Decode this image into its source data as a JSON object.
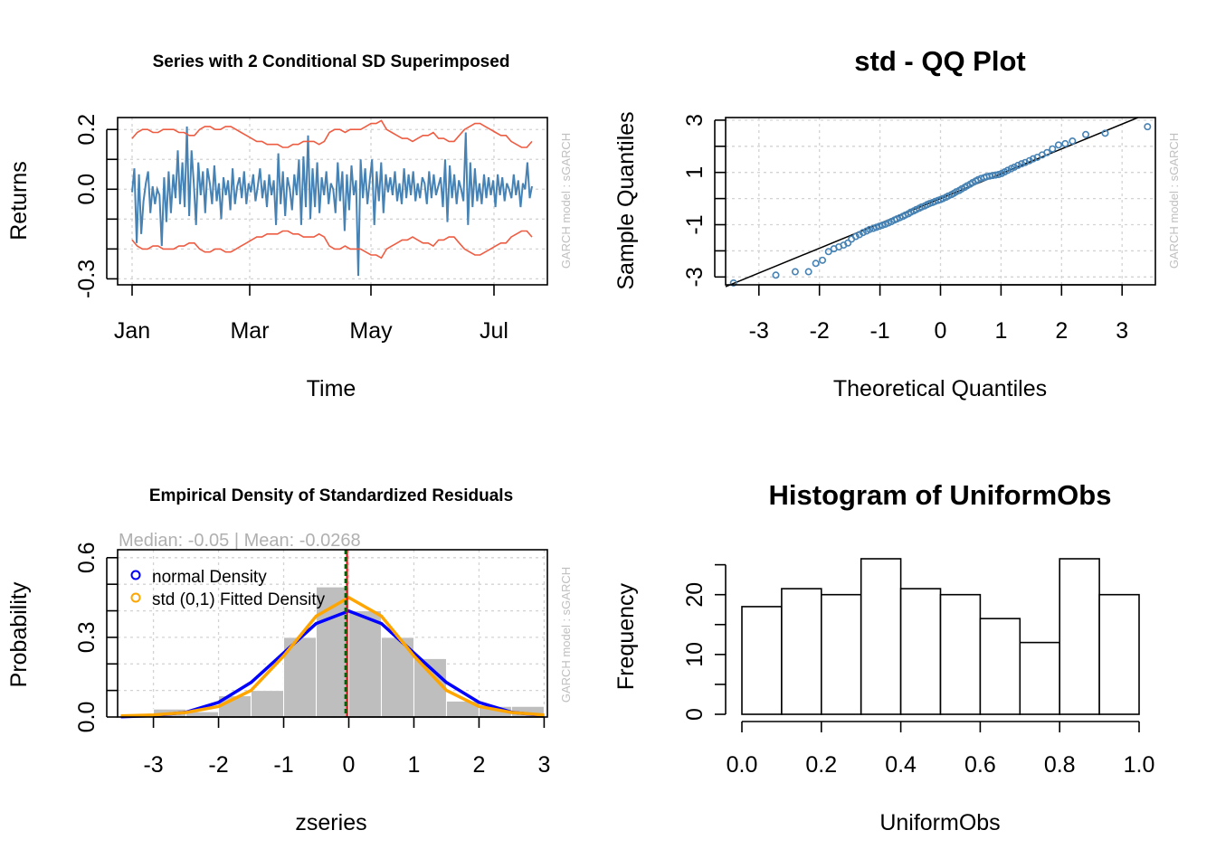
{
  "chart_data": [
    {
      "type": "line",
      "title": "Series with 2 Conditional SD Superimposed",
      "xlabel": "Time",
      "ylabel": "Returns",
      "side_note": "GARCH model : sGARCH",
      "x_tick_labels": [
        "Jan",
        "Mar",
        "May",
        "Jul"
      ],
      "y_ticks": [
        -0.3,
        0.0,
        0.2
      ],
      "y_tick_labels": [
        "-0.3",
        "0.0",
        "0.2"
      ],
      "ylim": [
        -0.32,
        0.24
      ],
      "grid": true,
      "colors": {
        "series": "#4682b4",
        "bands": "#ee5c42"
      },
      "series": [
        {
          "key": "returns",
          "values": [
            -0.01,
            0.07,
            -0.18,
            0.05,
            -0.15,
            -0.04,
            0.02,
            0.06,
            -0.08,
            0.01,
            -0.05,
            0.0,
            -0.02,
            -0.19,
            0.04,
            -0.11,
            0.06,
            -0.08,
            0.05,
            -0.03,
            0.13,
            -0.05,
            0.09,
            -0.06,
            0.21,
            -0.09,
            0.13,
            0.02,
            -0.12,
            0.09,
            -0.02,
            0.06,
            -0.08,
            0.07,
            0.02,
            -0.05,
            0.08,
            -0.04,
            0.02,
            -0.1,
            0.04,
            -0.02,
            0.03,
            -0.07,
            0.07,
            -0.05,
            0.01,
            0.04,
            -0.03,
            0.06,
            -0.05,
            0.02,
            -0.01,
            0.05,
            -0.04,
            0.01,
            0.07,
            -0.03,
            0.03,
            -0.06,
            0.05,
            -0.02,
            0.03,
            -0.12,
            0.12,
            -0.05,
            0.06,
            -0.09,
            0.04,
            0.0,
            -0.07,
            0.05,
            -0.02,
            0.1,
            -0.12,
            0.11,
            -0.06,
            0.18,
            -0.1,
            0.07,
            -0.06,
            0.09,
            -0.08,
            0.04,
            -0.02,
            0.06,
            -0.05,
            0.02,
            0.0,
            -0.08,
            0.09,
            -0.04,
            0.06,
            -0.14,
            0.05,
            -0.07,
            0.08,
            -0.02,
            0.03,
            -0.29,
            0.1,
            -0.03,
            0.07,
            -0.05,
            0.03,
            0.1,
            -0.12,
            0.06,
            -0.04,
            0.09,
            -0.08,
            0.05,
            -0.01,
            0.04,
            -0.02,
            0.06,
            -0.04,
            0.02,
            -0.05,
            0.07,
            -0.03,
            0.05,
            -0.02,
            0.06,
            -0.04,
            0.02,
            -0.03,
            0.04,
            0.02,
            -0.05,
            0.06,
            -0.03,
            0.05,
            -0.02,
            0.01,
            0.04,
            -0.06,
            0.1,
            -0.11,
            0.08,
            -0.03,
            0.05,
            -0.05,
            0.03,
            0.0,
            -0.04,
            0.19,
            -0.12,
            0.09,
            -0.06,
            0.07,
            -0.04,
            0.02,
            -0.05,
            0.05,
            -0.03,
            0.04,
            -0.02,
            0.03,
            -0.06,
            0.05,
            -0.02,
            0.04,
            -0.04,
            0.02,
            0.0,
            -0.03,
            0.05,
            -0.02,
            0.03,
            -0.06,
            0.02,
            0.0,
            0.09,
            -0.03,
            0.01
          ]
        },
        {
          "key": "upper_2sd",
          "values": [
            0.17,
            0.19,
            0.2,
            0.2,
            0.19,
            0.19,
            0.2,
            0.2,
            0.2,
            0.19,
            0.19,
            0.18,
            0.18,
            0.2,
            0.21,
            0.21,
            0.2,
            0.2,
            0.21,
            0.21,
            0.2,
            0.19,
            0.18,
            0.17,
            0.16,
            0.16,
            0.15,
            0.15,
            0.15,
            0.14,
            0.14,
            0.15,
            0.15,
            0.16,
            0.16,
            0.16,
            0.15,
            0.16,
            0.19,
            0.2,
            0.2,
            0.19,
            0.2,
            0.2,
            0.2,
            0.21,
            0.22,
            0.22,
            0.23,
            0.2,
            0.19,
            0.18,
            0.17,
            0.17,
            0.16,
            0.17,
            0.18,
            0.18,
            0.19,
            0.17,
            0.17,
            0.16,
            0.16,
            0.18,
            0.2,
            0.21,
            0.22,
            0.22,
            0.21,
            0.2,
            0.19,
            0.18,
            0.18,
            0.16,
            0.15,
            0.14,
            0.14,
            0.16
          ]
        },
        {
          "key": "lower_2sd",
          "values": [
            -0.17,
            -0.19,
            -0.2,
            -0.2,
            -0.19,
            -0.19,
            -0.2,
            -0.2,
            -0.2,
            -0.19,
            -0.19,
            -0.18,
            -0.18,
            -0.2,
            -0.21,
            -0.21,
            -0.2,
            -0.2,
            -0.21,
            -0.21,
            -0.2,
            -0.19,
            -0.18,
            -0.17,
            -0.16,
            -0.16,
            -0.15,
            -0.15,
            -0.15,
            -0.14,
            -0.14,
            -0.15,
            -0.15,
            -0.16,
            -0.16,
            -0.16,
            -0.15,
            -0.16,
            -0.19,
            -0.2,
            -0.2,
            -0.19,
            -0.2,
            -0.2,
            -0.2,
            -0.21,
            -0.22,
            -0.22,
            -0.23,
            -0.2,
            -0.19,
            -0.18,
            -0.17,
            -0.17,
            -0.16,
            -0.17,
            -0.18,
            -0.18,
            -0.19,
            -0.17,
            -0.17,
            -0.16,
            -0.16,
            -0.18,
            -0.2,
            -0.21,
            -0.22,
            -0.22,
            -0.21,
            -0.2,
            -0.19,
            -0.18,
            -0.18,
            -0.16,
            -0.15,
            -0.14,
            -0.14,
            -0.16
          ]
        }
      ]
    },
    {
      "type": "scatter",
      "title": "std - QQ Plot",
      "xlabel": "Theoretical Quantiles",
      "ylabel": "Sample Quantiles",
      "side_note": "GARCH model : sGARCH",
      "x_ticks": [
        -3,
        -2,
        -1,
        0,
        1,
        2,
        3
      ],
      "y_tick_labels": [
        "-3",
        "-1",
        "1",
        "3"
      ],
      "y_ticks": [
        -3,
        -1,
        1,
        3
      ],
      "xlim": [
        -3.55,
        3.55
      ],
      "ylim": [
        -3.3,
        3.1
      ],
      "grid": true,
      "colors": {
        "points": "#4682b4",
        "line": "#000000"
      },
      "reference_line": {
        "slope": 0.95,
        "intercept": 0.0
      },
      "points": [
        [
          -3.42,
          -3.23
        ],
        [
          -2.72,
          -2.93
        ],
        [
          -2.4,
          -2.8
        ],
        [
          -2.18,
          -2.8
        ],
        [
          -2.06,
          -2.48
        ],
        [
          -1.95,
          -2.36
        ],
        [
          -1.85,
          -2.03
        ],
        [
          -1.76,
          -1.92
        ],
        [
          -1.68,
          -1.85
        ],
        [
          -1.6,
          -1.78
        ],
        [
          -1.53,
          -1.7
        ],
        [
          -1.47,
          -1.55
        ],
        [
          -1.4,
          -1.45
        ],
        [
          -1.34,
          -1.38
        ],
        [
          -1.28,
          -1.3
        ],
        [
          -1.22,
          -1.24
        ],
        [
          -1.17,
          -1.18
        ],
        [
          -1.11,
          -1.14
        ],
        [
          -1.06,
          -1.1
        ],
        [
          -1.01,
          -1.06
        ],
        [
          -0.96,
          -1.02
        ],
        [
          -0.91,
          -0.98
        ],
        [
          -0.86,
          -0.93
        ],
        [
          -0.81,
          -0.88
        ],
        [
          -0.76,
          -0.82
        ],
        [
          -0.72,
          -0.78
        ],
        [
          -0.67,
          -0.73
        ],
        [
          -0.62,
          -0.68
        ],
        [
          -0.58,
          -0.63
        ],
        [
          -0.53,
          -0.58
        ],
        [
          -0.49,
          -0.52
        ],
        [
          -0.44,
          -0.47
        ],
        [
          -0.4,
          -0.42
        ],
        [
          -0.35,
          -0.37
        ],
        [
          -0.31,
          -0.32
        ],
        [
          -0.26,
          -0.28
        ],
        [
          -0.22,
          -0.23
        ],
        [
          -0.18,
          -0.19
        ],
        [
          -0.13,
          -0.15
        ],
        [
          -0.09,
          -0.11
        ],
        [
          -0.04,
          -0.07
        ],
        [
          0.0,
          -0.04
        ],
        [
          0.04,
          0.0
        ],
        [
          0.09,
          0.05
        ],
        [
          0.13,
          0.1
        ],
        [
          0.18,
          0.15
        ],
        [
          0.22,
          0.2
        ],
        [
          0.26,
          0.26
        ],
        [
          0.31,
          0.31
        ],
        [
          0.35,
          0.37
        ],
        [
          0.4,
          0.43
        ],
        [
          0.44,
          0.49
        ],
        [
          0.49,
          0.55
        ],
        [
          0.53,
          0.61
        ],
        [
          0.58,
          0.67
        ],
        [
          0.62,
          0.72
        ],
        [
          0.67,
          0.77
        ],
        [
          0.72,
          0.8
        ],
        [
          0.76,
          0.84
        ],
        [
          0.81,
          0.86
        ],
        [
          0.86,
          0.88
        ],
        [
          0.91,
          0.9
        ],
        [
          0.96,
          0.92
        ],
        [
          1.01,
          0.96
        ],
        [
          1.06,
          1.02
        ],
        [
          1.11,
          1.08
        ],
        [
          1.17,
          1.15
        ],
        [
          1.22,
          1.2
        ],
        [
          1.28,
          1.27
        ],
        [
          1.34,
          1.33
        ],
        [
          1.4,
          1.38
        ],
        [
          1.47,
          1.45
        ],
        [
          1.53,
          1.52
        ],
        [
          1.6,
          1.58
        ],
        [
          1.68,
          1.67
        ],
        [
          1.76,
          1.76
        ],
        [
          1.85,
          1.9
        ],
        [
          1.95,
          2.05
        ],
        [
          2.06,
          2.1
        ],
        [
          2.18,
          2.2
        ],
        [
          2.4,
          2.45
        ],
        [
          2.72,
          2.5
        ],
        [
          3.42,
          2.75
        ]
      ]
    },
    {
      "type": "bar",
      "title": "Empirical Density of Standardized Residuals",
      "annotation": "Median:  -0.05 | Mean:  -0.0268",
      "xlabel": "zseries",
      "ylabel": "Probability",
      "side_note": "GARCH model : sGARCH",
      "x_ticks": [
        -3,
        -2,
        -1,
        0,
        1,
        2,
        3
      ],
      "y_ticks": [
        0.0,
        0.3,
        0.6
      ],
      "y_tick_labels": [
        "0.0",
        "0.3",
        "0.6"
      ],
      "xlim": [
        -3.55,
        3.05
      ],
      "ylim": [
        0.0,
        0.63
      ],
      "grid": true,
      "colors": {
        "bars": "#bebebe",
        "normal": "#0000ff",
        "fitted": "#ffa500",
        "mean": "#ff0000",
        "median": "#006400"
      },
      "bins": [
        [
          -3.5,
          -3.0,
          0.01
        ],
        [
          -3.0,
          -2.5,
          0.03
        ],
        [
          -2.5,
          -2.0,
          0.02
        ],
        [
          -2.0,
          -1.5,
          0.08
        ],
        [
          -1.5,
          -1.0,
          0.1
        ],
        [
          -1.0,
          -0.5,
          0.3
        ],
        [
          -0.5,
          0.0,
          0.49
        ],
        [
          0.0,
          0.5,
          0.4
        ],
        [
          0.5,
          1.0,
          0.3
        ],
        [
          1.0,
          1.5,
          0.22
        ],
        [
          1.5,
          2.0,
          0.06
        ],
        [
          2.0,
          2.5,
          0.04
        ],
        [
          2.5,
          3.0,
          0.04
        ]
      ],
      "series": [
        {
          "name": "normal Density",
          "x": [
            -3.5,
            -3.0,
            -2.5,
            -2.0,
            -1.5,
            -1.0,
            -0.5,
            0.0,
            0.5,
            1.0,
            1.5,
            2.0,
            2.5,
            3.0
          ],
          "values": [
            0.001,
            0.005,
            0.018,
            0.055,
            0.13,
            0.241,
            0.352,
            0.399,
            0.352,
            0.241,
            0.13,
            0.055,
            0.018,
            0.005
          ]
        },
        {
          "name": "std (0,1) Fitted Density",
          "x": [
            -3.5,
            -3.0,
            -2.5,
            -2.0,
            -1.5,
            -1.0,
            -0.5,
            0.0,
            0.5,
            1.0,
            1.5,
            2.0,
            2.5,
            3.0
          ],
          "values": [
            0.004,
            0.008,
            0.017,
            0.04,
            0.1,
            0.23,
            0.38,
            0.45,
            0.38,
            0.23,
            0.1,
            0.04,
            0.017,
            0.008
          ]
        }
      ],
      "mean": -0.0268,
      "median": -0.05
    },
    {
      "type": "bar",
      "title": "Histogram of UniformObs",
      "xlabel": "UniformObs",
      "ylabel": "Frequency",
      "x_ticks": [
        0.0,
        0.2,
        0.4,
        0.6,
        0.8,
        1.0
      ],
      "x_tick_labels": [
        "0.0",
        "0.2",
        "0.4",
        "0.6",
        "0.8",
        "1.0"
      ],
      "y_ticks": [
        0,
        10,
        20
      ],
      "y_minor_ticks": [
        5,
        15,
        25
      ],
      "xlim": [
        0.0,
        1.0
      ],
      "ylim": [
        0,
        26
      ],
      "grid": false,
      "bins": [
        [
          0.0,
          0.1,
          18
        ],
        [
          0.1,
          0.2,
          21
        ],
        [
          0.2,
          0.3,
          20
        ],
        [
          0.3,
          0.4,
          26
        ],
        [
          0.4,
          0.5,
          21
        ],
        [
          0.5,
          0.6,
          20
        ],
        [
          0.6,
          0.7,
          16
        ],
        [
          0.7,
          0.8,
          12
        ],
        [
          0.8,
          0.9,
          26
        ],
        [
          0.9,
          1.0,
          20
        ]
      ]
    }
  ]
}
